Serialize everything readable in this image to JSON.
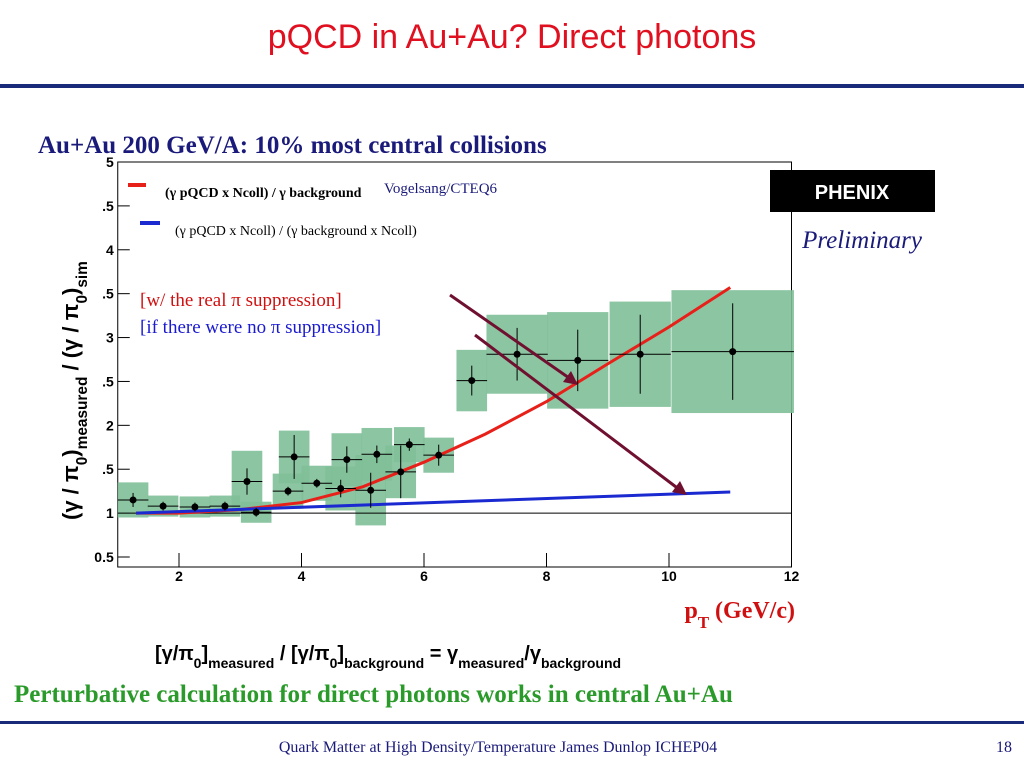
{
  "slide": {
    "title": "pQCD in Au+Au? Direct photons",
    "subtitle": "Au+Au 200 GeV/A: 10% most central collisions",
    "logo": "PHENIX",
    "preliminary": "Preliminary",
    "formula": [
      "[γ/π",
      "0",
      "]",
      "measured",
      " / [γ/π",
      "0",
      "]",
      "background",
      "  =  γ",
      "measured",
      "/γ",
      "background"
    ],
    "conclusion": "Perturbative calculation for direct photons works in central Au+Au",
    "footer": "Quark Matter at High Density/Temperature James Dunlop ICHEP04",
    "page": "18"
  },
  "chart_data": {
    "type": "scatter",
    "ylabel": [
      "(γ / π",
      "0",
      ")",
      "measured",
      " / (γ / π",
      "0",
      ")",
      "sim"
    ],
    "xlabel": [
      "p",
      "T",
      " (GeV/c)"
    ],
    "xlim": [
      1,
      12
    ],
    "ylim": [
      0.5,
      5
    ],
    "xticks": [
      2,
      4,
      6,
      8,
      10,
      12
    ],
    "yticks": [
      0.5,
      1,
      {
        "value": 1.5,
        "label": ".5"
      },
      2,
      {
        "value": 2.5,
        "label": ".5"
      },
      3,
      {
        "value": 3.5,
        "label": ".5"
      },
      4,
      {
        "value": 4.5,
        "label": ".5"
      },
      5
    ],
    "points": {
      "color": "#000000",
      "box_color": "#7fbf98",
      "x": [
        1.25,
        1.74,
        2.26,
        2.75,
        3.11,
        3.26,
        3.78,
        3.88,
        4.25,
        4.64,
        4.74,
        5.13,
        5.23,
        5.62,
        5.76,
        6.24,
        6.78,
        7.52,
        8.51,
        9.53,
        11.04
      ],
      "values": [
        1.15,
        1.08,
        1.07,
        1.08,
        1.36,
        1.01,
        1.25,
        1.64,
        1.34,
        1.28,
        1.61,
        1.26,
        1.67,
        1.47,
        1.78,
        1.66,
        2.51,
        2.81,
        2.74,
        2.81,
        2.84
      ],
      "yerr": [
        0.08,
        0.05,
        0.05,
        0.05,
        0.15,
        0.05,
        0.05,
        0.25,
        0.05,
        0.1,
        0.15,
        0.2,
        0.1,
        0.3,
        0.07,
        0.12,
        0.17,
        0.3,
        0.35,
        0.45,
        0.55
      ],
      "xerr": [
        0.25,
        0.25,
        0.25,
        0.25,
        0.25,
        0.25,
        0.25,
        0.25,
        0.25,
        0.25,
        0.25,
        0.25,
        0.25,
        0.25,
        0.25,
        0.25,
        0.25,
        0.5,
        0.5,
        0.5,
        1
      ],
      "sys_err": [
        0.2,
        0.12,
        0.12,
        0.12,
        0.35,
        0.12,
        0.2,
        0.3,
        0.2,
        0.25,
        0.3,
        0.4,
        0.3,
        0.3,
        0.2,
        0.2,
        0.35,
        0.45,
        0.55,
        0.6,
        0.7
      ]
    },
    "series": [
      {
        "name": "(γ pQCD x Ncoll) / γ background",
        "color": "#e8201a",
        "x": [
          1.3,
          2,
          3,
          4,
          5,
          6,
          7,
          8,
          9,
          10,
          11
        ],
        "values": [
          1.0,
          1.0,
          1.04,
          1.12,
          1.3,
          1.58,
          1.9,
          2.27,
          2.7,
          3.12,
          3.57
        ]
      },
      {
        "name": "(γ pQCD x Ncoll) / (γ background x Ncoll)",
        "color": "#1a2ad0",
        "x": [
          1.3,
          11
        ],
        "values": [
          1.0,
          1.24
        ]
      }
    ],
    "source": "Vogelsang/CTEQ6",
    "annotations": [
      {
        "text": "[w/ the real π suppression]",
        "color": "#d01010"
      },
      {
        "text": "[if there were no π suppression]",
        "color": "#1a1ad0"
      }
    ]
  }
}
